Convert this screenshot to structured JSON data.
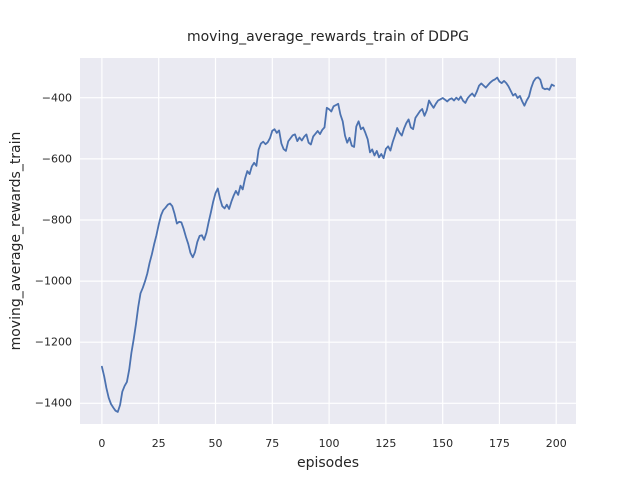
{
  "chart_data": {
    "type": "line",
    "title": "moving_average_rewards_train of DDPG",
    "xlabel": "episodes",
    "ylabel": "moving_average_rewards_train",
    "x_ticks": [
      0,
      25,
      50,
      75,
      100,
      125,
      150,
      175,
      200
    ],
    "y_ticks": [
      -400,
      -600,
      -800,
      -1000,
      -1200,
      -1400
    ],
    "xlim": [
      -9.64,
      208.7
    ],
    "ylim": [
      -1467.6,
      -270
    ],
    "grid": true,
    "style": "seaborn-darkgrid",
    "colors": {
      "axes_background": "#EAEAF2",
      "gridline": "#ffffff",
      "figure_background": "#ffffff",
      "text": "#262626"
    },
    "series": [
      {
        "name": "moving_average_rewards_train",
        "color": "#4C72B0",
        "points": [
          [
            0,
            -1280
          ],
          [
            1,
            -1312
          ],
          [
            2,
            -1350
          ],
          [
            3,
            -1382
          ],
          [
            4,
            -1402
          ],
          [
            5,
            -1414
          ],
          [
            6,
            -1424
          ],
          [
            7,
            -1428
          ],
          [
            8,
            -1405
          ],
          [
            9,
            -1362
          ],
          [
            10,
            -1343
          ],
          [
            11,
            -1330
          ],
          [
            12,
            -1290
          ],
          [
            13,
            -1235
          ],
          [
            14,
            -1190
          ],
          [
            15,
            -1140
          ],
          [
            16,
            -1085
          ],
          [
            17,
            -1040
          ],
          [
            18,
            -1022
          ],
          [
            19,
            -1000
          ],
          [
            20,
            -975
          ],
          [
            21,
            -940
          ],
          [
            22,
            -912
          ],
          [
            23,
            -880
          ],
          [
            24,
            -850
          ],
          [
            25,
            -815
          ],
          [
            26,
            -785
          ],
          [
            27,
            -768
          ],
          [
            28,
            -760
          ],
          [
            29,
            -750
          ],
          [
            30,
            -746
          ],
          [
            31,
            -755
          ],
          [
            32,
            -780
          ],
          [
            33,
            -812
          ],
          [
            34,
            -806
          ],
          [
            35,
            -808
          ],
          [
            36,
            -830
          ],
          [
            37,
            -856
          ],
          [
            38,
            -878
          ],
          [
            39,
            -908
          ],
          [
            40,
            -922
          ],
          [
            41,
            -905
          ],
          [
            42,
            -872
          ],
          [
            43,
            -852
          ],
          [
            44,
            -850
          ],
          [
            45,
            -865
          ],
          [
            46,
            -842
          ],
          [
            47,
            -806
          ],
          [
            48,
            -775
          ],
          [
            49,
            -740
          ],
          [
            50,
            -712
          ],
          [
            51,
            -697
          ],
          [
            52,
            -730
          ],
          [
            53,
            -755
          ],
          [
            54,
            -762
          ],
          [
            55,
            -750
          ],
          [
            56,
            -764
          ],
          [
            57,
            -740
          ],
          [
            58,
            -720
          ],
          [
            59,
            -705
          ],
          [
            60,
            -718
          ],
          [
            61,
            -688
          ],
          [
            62,
            -700
          ],
          [
            63,
            -665
          ],
          [
            64,
            -640
          ],
          [
            65,
            -650
          ],
          [
            66,
            -625
          ],
          [
            67,
            -613
          ],
          [
            68,
            -623
          ],
          [
            69,
            -570
          ],
          [
            70,
            -550
          ],
          [
            71,
            -544
          ],
          [
            72,
            -552
          ],
          [
            73,
            -546
          ],
          [
            74,
            -532
          ],
          [
            75,
            -508
          ],
          [
            76,
            -503
          ],
          [
            77,
            -515
          ],
          [
            78,
            -507
          ],
          [
            79,
            -550
          ],
          [
            80,
            -568
          ],
          [
            81,
            -574
          ],
          [
            82,
            -543
          ],
          [
            83,
            -533
          ],
          [
            84,
            -523
          ],
          [
            85,
            -520
          ],
          [
            86,
            -542
          ],
          [
            87,
            -530
          ],
          [
            88,
            -540
          ],
          [
            89,
            -528
          ],
          [
            90,
            -520
          ],
          [
            91,
            -547
          ],
          [
            92,
            -553
          ],
          [
            93,
            -527
          ],
          [
            94,
            -518
          ],
          [
            95,
            -509
          ],
          [
            96,
            -519
          ],
          [
            97,
            -505
          ],
          [
            98,
            -497
          ],
          [
            99,
            -433
          ],
          [
            100,
            -438
          ],
          [
            101,
            -445
          ],
          [
            102,
            -428
          ],
          [
            103,
            -424
          ],
          [
            104,
            -420
          ],
          [
            105,
            -455
          ],
          [
            106,
            -477
          ],
          [
            107,
            -524
          ],
          [
            108,
            -547
          ],
          [
            109,
            -531
          ],
          [
            110,
            -557
          ],
          [
            111,
            -561
          ],
          [
            112,
            -494
          ],
          [
            113,
            -477
          ],
          [
            114,
            -503
          ],
          [
            115,
            -497
          ],
          [
            116,
            -515
          ],
          [
            117,
            -536
          ],
          [
            118,
            -579
          ],
          [
            119,
            -569
          ],
          [
            120,
            -589
          ],
          [
            121,
            -574
          ],
          [
            122,
            -595
          ],
          [
            123,
            -584
          ],
          [
            124,
            -598
          ],
          [
            125,
            -567
          ],
          [
            126,
            -559
          ],
          [
            127,
            -573
          ],
          [
            128,
            -545
          ],
          [
            129,
            -524
          ],
          [
            130,
            -499
          ],
          [
            131,
            -514
          ],
          [
            132,
            -524
          ],
          [
            133,
            -501
          ],
          [
            134,
            -483
          ],
          [
            135,
            -471
          ],
          [
            136,
            -497
          ],
          [
            137,
            -503
          ],
          [
            138,
            -466
          ],
          [
            139,
            -455
          ],
          [
            140,
            -444
          ],
          [
            141,
            -437
          ],
          [
            142,
            -459
          ],
          [
            143,
            -441
          ],
          [
            144,
            -409
          ],
          [
            145,
            -422
          ],
          [
            146,
            -433
          ],
          [
            147,
            -420
          ],
          [
            148,
            -409
          ],
          [
            149,
            -405
          ],
          [
            150,
            -401
          ],
          [
            151,
            -406
          ],
          [
            152,
            -412
          ],
          [
            153,
            -405
          ],
          [
            154,
            -402
          ],
          [
            155,
            -409
          ],
          [
            156,
            -400
          ],
          [
            157,
            -407
          ],
          [
            158,
            -396
          ],
          [
            159,
            -410
          ],
          [
            160,
            -417
          ],
          [
            161,
            -402
          ],
          [
            162,
            -393
          ],
          [
            163,
            -386
          ],
          [
            164,
            -396
          ],
          [
            165,
            -381
          ],
          [
            166,
            -361
          ],
          [
            167,
            -353
          ],
          [
            168,
            -360
          ],
          [
            169,
            -367
          ],
          [
            170,
            -358
          ],
          [
            171,
            -350
          ],
          [
            172,
            -344
          ],
          [
            173,
            -340
          ],
          [
            174,
            -334
          ],
          [
            175,
            -347
          ],
          [
            176,
            -352
          ],
          [
            177,
            -345
          ],
          [
            178,
            -352
          ],
          [
            179,
            -363
          ],
          [
            180,
            -378
          ],
          [
            181,
            -393
          ],
          [
            182,
            -387
          ],
          [
            183,
            -401
          ],
          [
            184,
            -394
          ],
          [
            185,
            -412
          ],
          [
            186,
            -426
          ],
          [
            187,
            -409
          ],
          [
            188,
            -396
          ],
          [
            189,
            -368
          ],
          [
            190,
            -347
          ],
          [
            191,
            -336
          ],
          [
            192,
            -333
          ],
          [
            193,
            -341
          ],
          [
            194,
            -368
          ],
          [
            195,
            -372
          ],
          [
            196,
            -370
          ],
          [
            197,
            -374
          ],
          [
            198,
            -357
          ],
          [
            199,
            -361
          ]
        ]
      }
    ]
  }
}
